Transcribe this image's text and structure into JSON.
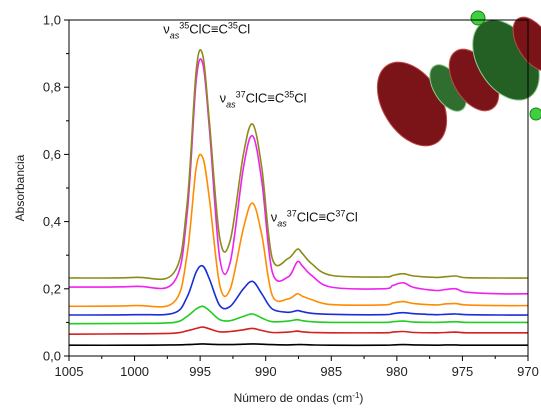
{
  "chart_data": {
    "type": "line",
    "title": "",
    "xlabel": "Número de ondas (cm",
    "xlabel_sup": "-1",
    "xlabel_close": ")",
    "ylabel": "Absorbancia",
    "xlim": [
      1005,
      970
    ],
    "ylim": [
      0.0,
      1.0
    ],
    "x_ticks": [
      1005,
      1000,
      995,
      990,
      985,
      980,
      975,
      970
    ],
    "y_ticks": [
      {
        "value": 0.0,
        "label": "0,0"
      },
      {
        "value": 0.2,
        "label": "0,2"
      },
      {
        "value": 0.4,
        "label": "0,4"
      },
      {
        "value": 0.6,
        "label": "0,6"
      },
      {
        "value": 0.8,
        "label": "0,8"
      },
      {
        "value": 1.0,
        "label": "1,0"
      }
    ],
    "grid": false,
    "x": [
      1005,
      1000,
      997,
      996,
      995.3,
      994.8,
      994.3,
      993.5,
      992.7,
      991.7,
      991.0,
      990.3,
      989.5,
      988.3,
      987.6,
      987.2,
      986.5,
      985,
      981,
      980.3,
      979.5,
      978.7,
      977,
      976.3,
      975.5,
      974.7,
      972,
      970
    ],
    "series": [
      {
        "color": "#000000",
        "values": [
          0.032,
          0.032,
          0.033,
          0.034,
          0.035,
          0.036,
          0.035,
          0.034,
          0.034,
          0.035,
          0.036,
          0.035,
          0.034,
          0.033,
          0.034,
          0.034,
          0.033,
          0.032,
          0.032,
          0.033,
          0.034,
          0.033,
          0.032,
          0.033,
          0.033,
          0.032,
          0.032,
          0.032
        ]
      },
      {
        "color": "#d42020",
        "values": [
          0.065,
          0.066,
          0.068,
          0.075,
          0.082,
          0.086,
          0.081,
          0.072,
          0.073,
          0.078,
          0.082,
          0.076,
          0.07,
          0.071,
          0.074,
          0.072,
          0.07,
          0.069,
          0.069,
          0.071,
          0.073,
          0.07,
          0.069,
          0.07,
          0.071,
          0.069,
          0.069,
          0.069
        ]
      },
      {
        "color": "#22cc22",
        "values": [
          0.096,
          0.097,
          0.1,
          0.118,
          0.14,
          0.148,
          0.135,
          0.108,
          0.105,
          0.118,
          0.125,
          0.113,
          0.102,
          0.104,
          0.108,
          0.105,
          0.102,
          0.1,
          0.1,
          0.102,
          0.104,
          0.101,
          0.1,
          0.101,
          0.102,
          0.1,
          0.1,
          0.1
        ]
      },
      {
        "color": "#1a2ed8",
        "values": [
          0.122,
          0.123,
          0.128,
          0.175,
          0.25,
          0.268,
          0.23,
          0.15,
          0.148,
          0.2,
          0.222,
          0.185,
          0.14,
          0.13,
          0.135,
          0.132,
          0.127,
          0.124,
          0.123,
          0.126,
          0.129,
          0.126,
          0.123,
          0.124,
          0.125,
          0.123,
          0.122,
          0.122
        ]
      },
      {
        "color": "#ff8c00",
        "values": [
          0.148,
          0.15,
          0.16,
          0.3,
          0.56,
          0.59,
          0.47,
          0.21,
          0.2,
          0.38,
          0.455,
          0.36,
          0.18,
          0.17,
          0.185,
          0.178,
          0.168,
          0.153,
          0.152,
          0.158,
          0.162,
          0.156,
          0.152,
          0.155,
          0.156,
          0.152,
          0.15,
          0.15
        ]
      },
      {
        "color": "#ee22ee",
        "values": [
          0.205,
          0.207,
          0.22,
          0.42,
          0.82,
          0.87,
          0.68,
          0.29,
          0.28,
          0.56,
          0.655,
          0.52,
          0.25,
          0.235,
          0.28,
          0.268,
          0.24,
          0.205,
          0.2,
          0.21,
          0.218,
          0.204,
          0.195,
          0.198,
          0.2,
          0.19,
          0.185,
          0.185
        ]
      },
      {
        "color": "#8b8b1a",
        "values": [
          0.232,
          0.234,
          0.248,
          0.45,
          0.85,
          0.895,
          0.7,
          0.35,
          0.345,
          0.6,
          0.69,
          0.56,
          0.29,
          0.29,
          0.318,
          0.305,
          0.275,
          0.24,
          0.235,
          0.24,
          0.245,
          0.238,
          0.234,
          0.236,
          0.238,
          0.233,
          0.232,
          0.232
        ]
      }
    ],
    "annotations": [
      {
        "prefix": "ν",
        "sub": "as",
        "sup1": "35",
        "mid": "ClC≡C",
        "sup2": "35",
        "tail": "Cl",
        "x": 994.5,
        "y": 0.96
      },
      {
        "prefix": "ν",
        "sub": "as",
        "sup1": "37",
        "mid": "ClC≡C",
        "sup2": "35",
        "tail": "Cl",
        "x": 990.2,
        "y": 0.755
      },
      {
        "prefix": "ν",
        "sub": "as",
        "sup1": "37",
        "mid": "ClC≡C",
        "sup2": "37",
        "tail": "Cl",
        "x": 986.3,
        "y": 0.4
      }
    ]
  }
}
